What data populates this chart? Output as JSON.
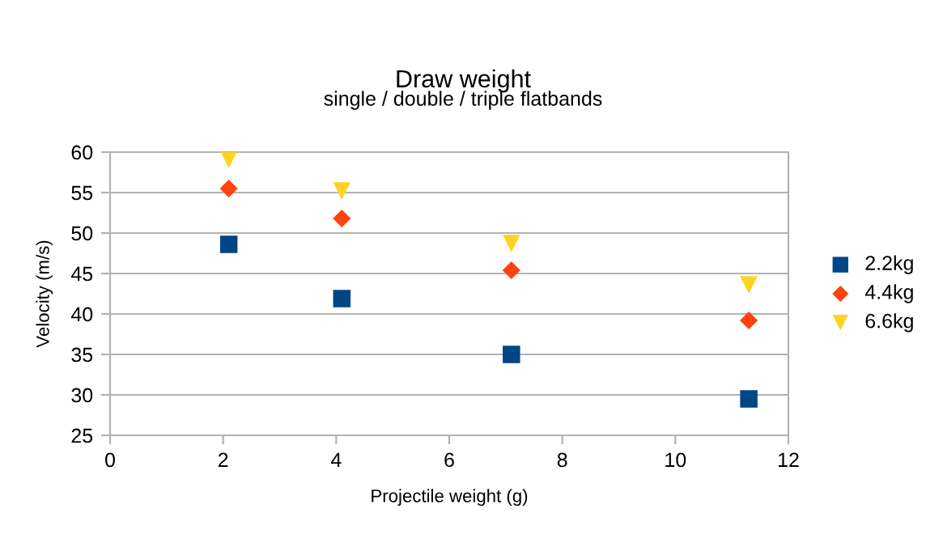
{
  "chart_data": {
    "type": "scatter",
    "title": "Draw weight",
    "subtitle": "single / double / triple flatbands",
    "xlabel": "Projectile weight (g)",
    "ylabel": "Velocity (m/s)",
    "x": [
      2.1,
      4.1,
      7.1,
      11.3
    ],
    "series": [
      {
        "name": "2.2kg",
        "color": "#004586",
        "marker": "square",
        "values": [
          48.6,
          41.9,
          35.0,
          29.5
        ]
      },
      {
        "name": "4.4kg",
        "color": "#ff420e",
        "marker": "diamond",
        "values": [
          55.5,
          51.8,
          45.4,
          39.2
        ]
      },
      {
        "name": "6.6kg",
        "color": "#ffd320",
        "marker": "triangle",
        "values": [
          59.1,
          55.2,
          48.7,
          43.6
        ]
      }
    ],
    "xlim": [
      0,
      12
    ],
    "xticks": [
      0,
      2,
      4,
      6,
      8,
      10,
      12
    ],
    "ylim": [
      25,
      60
    ],
    "yticks": [
      25,
      30,
      35,
      40,
      45,
      50,
      55,
      60
    ],
    "grid": "y",
    "legend": "right"
  }
}
